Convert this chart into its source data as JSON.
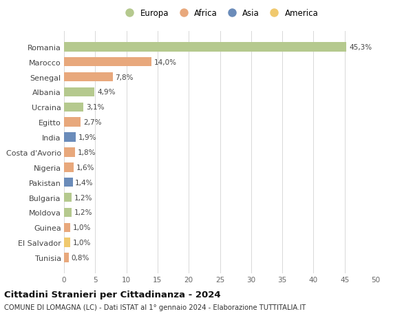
{
  "countries": [
    "Romania",
    "Marocco",
    "Senegal",
    "Albania",
    "Ucraina",
    "Egitto",
    "India",
    "Costa d'Avorio",
    "Nigeria",
    "Pakistan",
    "Bulgaria",
    "Moldova",
    "Guinea",
    "El Salvador",
    "Tunisia"
  ],
  "values": [
    45.3,
    14.0,
    7.8,
    4.9,
    3.1,
    2.7,
    1.9,
    1.8,
    1.6,
    1.4,
    1.2,
    1.2,
    1.0,
    1.0,
    0.8
  ],
  "labels": [
    "45,3%",
    "14,0%",
    "7,8%",
    "4,9%",
    "3,1%",
    "2,7%",
    "1,9%",
    "1,8%",
    "1,6%",
    "1,4%",
    "1,2%",
    "1,2%",
    "1,0%",
    "1,0%",
    "0,8%"
  ],
  "continents": [
    "Europa",
    "Africa",
    "Africa",
    "Europa",
    "Europa",
    "Africa",
    "Asia",
    "Africa",
    "Africa",
    "Asia",
    "Europa",
    "Europa",
    "Africa",
    "America",
    "Africa"
  ],
  "colors": {
    "Europa": "#b5c98e",
    "Africa": "#e8a87c",
    "Asia": "#6b8cba",
    "America": "#f0c96e"
  },
  "legend_order": [
    "Europa",
    "Africa",
    "Asia",
    "America"
  ],
  "title": "Cittadini Stranieri per Cittadinanza - 2024",
  "subtitle": "COMUNE DI LOMAGNA (LC) - Dati ISTAT al 1° gennaio 2024 - Elaborazione TUTTITALIA.IT",
  "xlim": [
    0,
    50
  ],
  "xticks": [
    0,
    5,
    10,
    15,
    20,
    25,
    30,
    35,
    40,
    45,
    50
  ],
  "background_color": "#ffffff",
  "grid_color": "#d8d8d8"
}
